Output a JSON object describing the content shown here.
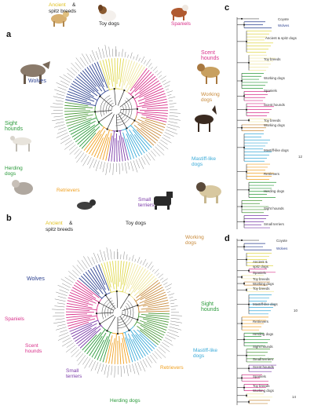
{
  "panels": {
    "a": "a",
    "b": "b",
    "c": "c",
    "d": "d"
  },
  "colors": {
    "wolves": "#2a3f8f",
    "spitz": "#e0d84a",
    "toy": "#f0e8a0",
    "spaniels": "#d8308a",
    "scent": "#d8308a",
    "working": "#c88a3a",
    "mastiff": "#3aaad8",
    "terriers": "#7a3aa8",
    "retrievers": "#f0a020",
    "herding": "#2a9a3a",
    "sight": "#4a9a3a",
    "ancient": "#e8c820"
  },
  "panel_a": {
    "ancient": "Ancient",
    "amp": "&",
    "spitz_breeds": "spitz breeds",
    "toy_dogs": "Toy dogs",
    "spaniels": "Spaniels",
    "scent_hounds": "Scent hounds",
    "wolves": "Wolves",
    "working_dogs": "Working dogs",
    "sight_hounds": "Sight hounds",
    "herding_dogs": "Herding dogs",
    "retrievers": "Retrievers",
    "mastiff_like": "Mastiff-like dogs",
    "small_terriers": "Small terriers"
  },
  "panel_b": {
    "ancient": "Ancient",
    "amp": "&",
    "spitz_breeds": "spitz breeds",
    "toy_dogs": "Toy dogs",
    "working_dogs": "Working dogs",
    "wolves": "Wolves",
    "sight_hounds": "Sight hounds",
    "spaniels": "Spaniels",
    "scent_hounds": "Scent hounds",
    "mastiff_like": "Mastiff-like dogs",
    "small_terriers": "Small terriers",
    "retrievers": "Retrievers",
    "herding_dogs": "Herding dogs"
  },
  "panel_c": {
    "coyote": "Coyote",
    "wolves": "Wolves",
    "ancient_spitz": "Ancient & spitz dogs",
    "toy_breeds": "Toy breeds",
    "working_dogs": "Working dogs",
    "spaniels": "Spaniels",
    "scent_hounds": "Scent hounds",
    "toy_breeds2": "Toy breeds",
    "working_dogs2": "Working dogs",
    "mastiff_like": "Mastiff-like dogs",
    "retrievers": "Retrievers",
    "herding_dogs": "Herding dogs",
    "sight_hounds": "Sight hounds",
    "small_terriers": "Small terriers",
    "n12": "12"
  },
  "panel_d": {
    "coyote": "Coyote",
    "wolves": "Wolves",
    "ancient": "Ancient &",
    "spitz_dogs": "spitz dogs",
    "spaniels": "Spaniels",
    "toy_breeds": "Toy breeds",
    "working_dogs": "Working dogs",
    "toy_breeds2": "Toy breeds",
    "mastiff_like": "Mastiff-like dogs",
    "retrievers": "Retrievers",
    "herding_dogs": "Herding dogs",
    "sight_hounds": "Sight hounds",
    "small_terriers": "Small terriers",
    "scent_hounds": "Scent hounds",
    "spaniels2": "Spaniels",
    "toy_breeds3": "Toy breeds",
    "working_dogs2": "Working dogs",
    "n10": "10",
    "n14": "14"
  }
}
